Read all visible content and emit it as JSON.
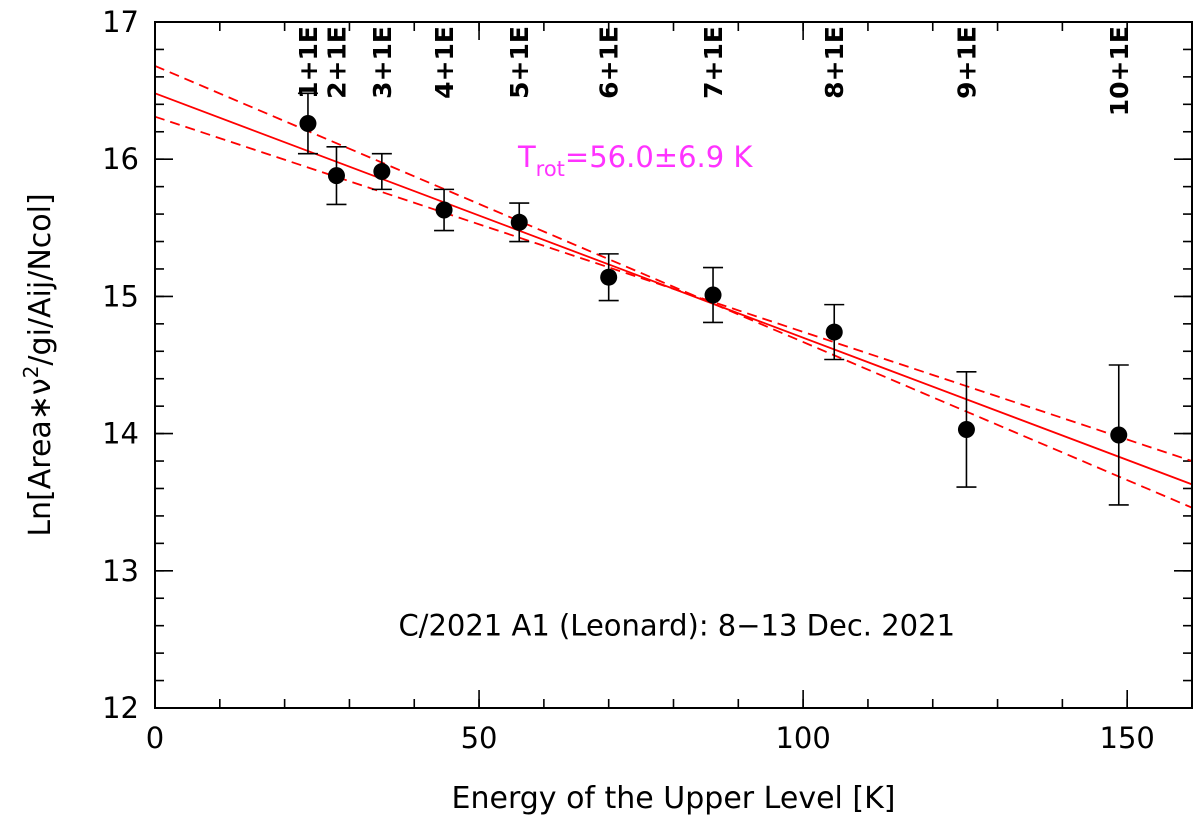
{
  "chart_data": {
    "type": "scatter",
    "title": "",
    "xlabel": "Energy of the Upper Level [K]",
    "ylabel_parts": {
      "pre": "Ln[Area∗ν",
      "sup": "2",
      "post": "/gi/Aij/Ncol]"
    },
    "xlim": [
      0,
      160
    ],
    "ylim": [
      12,
      17
    ],
    "x_ticks": [
      0,
      50,
      100,
      150
    ],
    "x_tick_labels": [
      "0",
      "50",
      "100",
      "150"
    ],
    "y_ticks": [
      12,
      13,
      14,
      15,
      16,
      17
    ],
    "y_tick_labels": [
      "12",
      "13",
      "14",
      "15",
      "16",
      "17"
    ],
    "x_minor_step": 10,
    "y_minor_step": 0.2,
    "points": [
      {
        "label": "1+1E",
        "x": 23.6,
        "y": 16.26,
        "err": 0.22
      },
      {
        "label": "2+1E",
        "x": 28.0,
        "y": 15.88,
        "err": 0.21
      },
      {
        "label": "3+1E",
        "x": 35.0,
        "y": 15.91,
        "err": 0.13
      },
      {
        "label": "4+1E",
        "x": 44.6,
        "y": 15.63,
        "err": 0.15
      },
      {
        "label": "5+1E",
        "x": 56.2,
        "y": 15.54,
        "err": 0.14
      },
      {
        "label": "6+1E",
        "x": 70.0,
        "y": 15.14,
        "err": 0.17
      },
      {
        "label": "7+1E",
        "x": 86.1,
        "y": 15.01,
        "err": 0.2
      },
      {
        "label": "8+1E",
        "x": 104.8,
        "y": 14.74,
        "err": 0.2
      },
      {
        "label": "9+1E",
        "x": 125.2,
        "y": 14.03,
        "err": 0.42
      },
      {
        "label": "10+1E",
        "x": 148.7,
        "y": 13.99,
        "err": 0.51
      }
    ],
    "line_label_positions_x": [
      23.6,
      28.0,
      35.0,
      44.6,
      56.2,
      70.0,
      86.1,
      104.8,
      125.2,
      148.7
    ],
    "fit": {
      "x": [
        0,
        160
      ],
      "y": [
        16.48,
        13.63
      ],
      "color": "#ff0000"
    },
    "fit_bounds": [
      {
        "x": [
          0,
          160
        ],
        "y": [
          16.68,
          13.46
        ],
        "color": "#ff0000"
      },
      {
        "x": [
          0,
          160
        ],
        "y": [
          16.31,
          13.8
        ],
        "color": "#ff0000"
      }
    ],
    "marker_color": "#000000",
    "trot_label": {
      "pre": "T",
      "sub": "rot",
      "post": "=56.0±6.9 K",
      "color": "#ff33ff",
      "x": 56,
      "y": 16.0
    },
    "annotation": {
      "text": "C/2021 A1 (Leonard): 8−13 Dec. 2021",
      "x": 80.5,
      "y": 12.6
    }
  }
}
